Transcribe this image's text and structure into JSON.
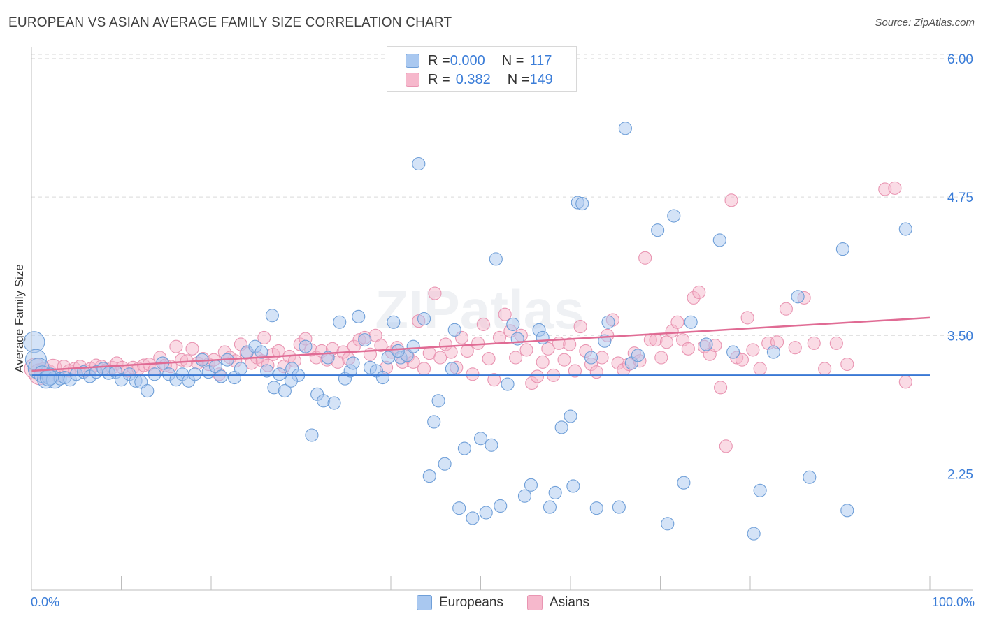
{
  "header": {
    "title": "EUROPEAN VS ASIAN AVERAGE FAMILY SIZE CORRELATION CHART",
    "source": "Source: ZipAtlas.com"
  },
  "colors": {
    "europeans_fill": "#a9c8f0",
    "europeans_stroke": "#6f9fd8",
    "europeans_line": "#3a78d4",
    "asians_fill": "#f6b8cc",
    "asians_stroke": "#e995b2",
    "asians_line": "#e06b94",
    "tick_label": "#3b7dd8",
    "grid": "#d9d9d9"
  },
  "legend_top": {
    "europeans": {
      "r_label": "R = ",
      "r_value": "0.000",
      "n_label": "N = ",
      "n_value": "117"
    },
    "asians": {
      "r_label": "R = ",
      "r_value": "0.382",
      "n_label": "N = ",
      "n_value": "149"
    }
  },
  "legend_bottom": {
    "europeans": "Europeans",
    "asians": "Asians"
  },
  "chart_data": {
    "type": "scatter",
    "title": "EUROPEAN VS ASIAN AVERAGE FAMILY SIZE CORRELATION CHART",
    "xlabel": "",
    "ylabel": "Average Family Size",
    "xlim": [
      0,
      100
    ],
    "ylim": [
      1.2,
      6.1
    ],
    "x_tick_labels": [
      "0.0%",
      "100.0%"
    ],
    "y_ticks": [
      2.25,
      3.5,
      4.75,
      6.0
    ],
    "y_tick_labels": [
      "2.25",
      "3.50",
      "4.75",
      "6.00"
    ],
    "grid": "horizontal dashed",
    "legend_position": "top-center",
    "watermark": "ZIPatlas",
    "series": [
      {
        "name": "Europeans",
        "R": 0.0,
        "N": 117,
        "trend": {
          "x": [
            0,
            100
          ],
          "y": [
            3.14,
            3.14
          ]
        },
        "points": [
          [
            0.3,
            3.44
          ],
          [
            0.5,
            3.28
          ],
          [
            0.8,
            3.2
          ],
          [
            1.2,
            3.15
          ],
          [
            1.6,
            3.1
          ],
          [
            2.1,
            3.13
          ],
          [
            2.6,
            3.1
          ],
          [
            3.2,
            3.11
          ],
          [
            3.7,
            3.12
          ],
          [
            4.3,
            3.1
          ],
          [
            5.0,
            3.15
          ],
          [
            5.8,
            3.17
          ],
          [
            6.5,
            3.13
          ],
          [
            7.2,
            3.17
          ],
          [
            8.0,
            3.2
          ],
          [
            8.6,
            3.16
          ],
          [
            9.4,
            3.17
          ],
          [
            10.0,
            3.1
          ],
          [
            10.9,
            3.15
          ],
          [
            11.6,
            3.09
          ],
          [
            12.2,
            3.08
          ],
          [
            12.9,
            3.0
          ],
          [
            13.7,
            3.15
          ],
          [
            14.6,
            3.25
          ],
          [
            15.3,
            3.15
          ],
          [
            16.1,
            3.1
          ],
          [
            16.8,
            3.15
          ],
          [
            17.5,
            3.09
          ],
          [
            18.2,
            3.15
          ],
          [
            19.0,
            3.28
          ],
          [
            19.7,
            3.17
          ],
          [
            20.5,
            3.22
          ],
          [
            21.1,
            3.13
          ],
          [
            21.8,
            3.28
          ],
          [
            22.6,
            3.12
          ],
          [
            23.3,
            3.2
          ],
          [
            24.0,
            3.35
          ],
          [
            24.9,
            3.4
          ],
          [
            25.6,
            3.35
          ],
          [
            26.2,
            3.18
          ],
          [
            26.8,
            3.68
          ],
          [
            27.0,
            3.03
          ],
          [
            27.6,
            3.15
          ],
          [
            28.2,
            3.0
          ],
          [
            29.0,
            3.2
          ],
          [
            29.7,
            3.14
          ],
          [
            30.5,
            3.4
          ],
          [
            31.2,
            2.6
          ],
          [
            31.8,
            2.97
          ],
          [
            32.5,
            2.91
          ],
          [
            33.0,
            3.3
          ],
          [
            33.7,
            2.89
          ],
          [
            34.3,
            3.62
          ],
          [
            34.9,
            3.11
          ],
          [
            35.5,
            3.18
          ],
          [
            36.4,
            3.67
          ],
          [
            37.1,
            3.46
          ],
          [
            37.7,
            3.21
          ],
          [
            38.4,
            3.18
          ],
          [
            39.1,
            3.12
          ],
          [
            39.7,
            3.3
          ],
          [
            40.3,
            3.62
          ],
          [
            41.1,
            3.3
          ],
          [
            41.8,
            3.32
          ],
          [
            42.5,
            3.4
          ],
          [
            43.1,
            5.05
          ],
          [
            43.7,
            3.65
          ],
          [
            44.3,
            2.23
          ],
          [
            44.8,
            2.72
          ],
          [
            45.3,
            2.91
          ],
          [
            46.0,
            2.34
          ],
          [
            46.8,
            3.2
          ],
          [
            47.1,
            3.55
          ],
          [
            47.6,
            1.94
          ],
          [
            48.2,
            2.48
          ],
          [
            49.1,
            1.85
          ],
          [
            50.0,
            2.57
          ],
          [
            50.6,
            1.9
          ],
          [
            51.2,
            2.51
          ],
          [
            51.7,
            4.19
          ],
          [
            52.2,
            1.96
          ],
          [
            53.0,
            3.06
          ],
          [
            53.6,
            3.6
          ],
          [
            54.1,
            3.47
          ],
          [
            54.9,
            2.05
          ],
          [
            55.6,
            2.15
          ],
          [
            56.5,
            3.55
          ],
          [
            56.9,
            3.48
          ],
          [
            57.7,
            1.95
          ],
          [
            58.3,
            2.08
          ],
          [
            59.0,
            2.67
          ],
          [
            60.0,
            2.77
          ],
          [
            60.3,
            2.14
          ],
          [
            60.8,
            4.7
          ],
          [
            61.3,
            4.69
          ],
          [
            62.3,
            3.3
          ],
          [
            62.9,
            1.94
          ],
          [
            63.8,
            3.45
          ],
          [
            64.2,
            3.62
          ],
          [
            65.4,
            1.95
          ],
          [
            66.1,
            5.37
          ],
          [
            66.8,
            3.25
          ],
          [
            67.5,
            3.32
          ],
          [
            69.7,
            4.45
          ],
          [
            70.8,
            1.8
          ],
          [
            71.5,
            4.58
          ],
          [
            72.6,
            2.17
          ],
          [
            73.4,
            3.62
          ],
          [
            75.1,
            3.42
          ],
          [
            76.6,
            4.36
          ],
          [
            78.1,
            3.35
          ],
          [
            80.4,
            1.71
          ],
          [
            81.1,
            2.1
          ],
          [
            82.6,
            3.35
          ],
          [
            85.3,
            3.85
          ],
          [
            86.6,
            2.22
          ],
          [
            90.3,
            4.28
          ],
          [
            90.8,
            1.92
          ],
          [
            97.3,
            4.46
          ],
          [
            1.9,
            3.12
          ],
          [
            35.8,
            3.25
          ],
          [
            28.9,
            3.09
          ],
          [
            40.8,
            3.36
          ]
        ]
      },
      {
        "name": "Asians",
        "R": 0.382,
        "N": 149,
        "trend": {
          "x": [
            0,
            100
          ],
          "y": [
            3.18,
            3.66
          ]
        },
        "points": [
          [
            0.4,
            3.2
          ],
          [
            0.9,
            3.15
          ],
          [
            1.4,
            3.18
          ],
          [
            1.9,
            3.16
          ],
          [
            2.4,
            3.21
          ],
          [
            3.0,
            3.14
          ],
          [
            3.6,
            3.22
          ],
          [
            4.2,
            3.18
          ],
          [
            4.8,
            3.2
          ],
          [
            5.4,
            3.22
          ],
          [
            6.0,
            3.18
          ],
          [
            6.6,
            3.2
          ],
          [
            7.2,
            3.23
          ],
          [
            7.8,
            3.22
          ],
          [
            8.4,
            3.19
          ],
          [
            9.0,
            3.21
          ],
          [
            9.5,
            3.25
          ],
          [
            10.1,
            3.21
          ],
          [
            10.7,
            3.18
          ],
          [
            11.3,
            3.21
          ],
          [
            11.9,
            3.2
          ],
          [
            12.5,
            3.23
          ],
          [
            13.1,
            3.24
          ],
          [
            13.7,
            3.19
          ],
          [
            14.3,
            3.3
          ],
          [
            14.9,
            3.23
          ],
          [
            15.5,
            3.22
          ],
          [
            16.1,
            3.4
          ],
          [
            16.7,
            3.28
          ],
          [
            17.3,
            3.27
          ],
          [
            17.9,
            3.38
          ],
          [
            18.5,
            3.25
          ],
          [
            19.1,
            3.29
          ],
          [
            19.7,
            3.24
          ],
          [
            20.3,
            3.28
          ],
          [
            20.9,
            3.15
          ],
          [
            21.5,
            3.35
          ],
          [
            22.1,
            3.3
          ],
          [
            22.7,
            3.27
          ],
          [
            23.3,
            3.42
          ],
          [
            23.9,
            3.34
          ],
          [
            24.5,
            3.25
          ],
          [
            25.1,
            3.3
          ],
          [
            25.7,
            3.27
          ],
          [
            26.3,
            3.23
          ],
          [
            26.9,
            3.33
          ],
          [
            27.5,
            3.36
          ],
          [
            28.1,
            3.22
          ],
          [
            28.7,
            3.31
          ],
          [
            29.3,
            3.27
          ],
          [
            29.9,
            3.42
          ],
          [
            30.5,
            3.47
          ],
          [
            31.1,
            3.37
          ],
          [
            31.7,
            3.3
          ],
          [
            32.3,
            3.36
          ],
          [
            32.9,
            3.28
          ],
          [
            33.5,
            3.38
          ],
          [
            34.1,
            3.26
          ],
          [
            34.7,
            3.35
          ],
          [
            35.3,
            3.29
          ],
          [
            35.9,
            3.4
          ],
          [
            36.5,
            3.46
          ],
          [
            37.1,
            3.48
          ],
          [
            37.7,
            3.33
          ],
          [
            38.3,
            3.5
          ],
          [
            38.9,
            3.41
          ],
          [
            39.5,
            3.21
          ],
          [
            40.1,
            3.35
          ],
          [
            40.7,
            3.39
          ],
          [
            41.3,
            3.26
          ],
          [
            41.9,
            3.31
          ],
          [
            42.5,
            3.26
          ],
          [
            43.1,
            3.63
          ],
          [
            43.7,
            3.2
          ],
          [
            44.3,
            3.34
          ],
          [
            44.9,
            3.88
          ],
          [
            45.5,
            3.3
          ],
          [
            46.1,
            3.42
          ],
          [
            46.7,
            3.35
          ],
          [
            47.3,
            3.21
          ],
          [
            47.9,
            3.48
          ],
          [
            48.5,
            3.36
          ],
          [
            49.1,
            3.15
          ],
          [
            49.7,
            3.43
          ],
          [
            50.3,
            3.6
          ],
          [
            50.9,
            3.29
          ],
          [
            51.5,
            3.1
          ],
          [
            52.1,
            3.48
          ],
          [
            52.7,
            3.69
          ],
          [
            53.3,
            3.54
          ],
          [
            53.9,
            3.3
          ],
          [
            54.5,
            3.5
          ],
          [
            55.1,
            3.37
          ],
          [
            55.7,
            3.07
          ],
          [
            56.3,
            3.13
          ],
          [
            56.9,
            3.26
          ],
          [
            57.5,
            3.38
          ],
          [
            58.1,
            3.14
          ],
          [
            58.7,
            3.43
          ],
          [
            59.3,
            3.28
          ],
          [
            59.9,
            3.42
          ],
          [
            60.5,
            3.18
          ],
          [
            61.1,
            3.58
          ],
          [
            61.7,
            3.36
          ],
          [
            62.3,
            3.24
          ],
          [
            62.9,
            3.17
          ],
          [
            63.5,
            3.3
          ],
          [
            64.1,
            3.5
          ],
          [
            64.7,
            3.64
          ],
          [
            65.3,
            3.25
          ],
          [
            65.9,
            3.19
          ],
          [
            66.5,
            3.24
          ],
          [
            67.1,
            3.34
          ],
          [
            67.7,
            3.27
          ],
          [
            68.3,
            4.2
          ],
          [
            68.9,
            3.46
          ],
          [
            69.5,
            3.46
          ],
          [
            70.1,
            3.3
          ],
          [
            70.7,
            3.44
          ],
          [
            71.3,
            3.54
          ],
          [
            71.9,
            3.62
          ],
          [
            72.5,
            3.46
          ],
          [
            73.1,
            3.38
          ],
          [
            73.7,
            3.84
          ],
          [
            74.3,
            3.89
          ],
          [
            74.9,
            3.4
          ],
          [
            75.5,
            3.33
          ],
          [
            76.1,
            3.41
          ],
          [
            76.7,
            3.03
          ],
          [
            77.3,
            2.5
          ],
          [
            77.9,
            4.72
          ],
          [
            78.5,
            3.3
          ],
          [
            79.1,
            3.28
          ],
          [
            79.7,
            3.66
          ],
          [
            80.3,
            3.37
          ],
          [
            81.1,
            3.2
          ],
          [
            82.0,
            3.43
          ],
          [
            83.0,
            3.44
          ],
          [
            84.0,
            3.74
          ],
          [
            85.0,
            3.39
          ],
          [
            86.0,
            3.84
          ],
          [
            87.1,
            3.43
          ],
          [
            88.3,
            3.2
          ],
          [
            89.6,
            3.43
          ],
          [
            90.8,
            3.24
          ],
          [
            95.0,
            4.82
          ],
          [
            96.1,
            4.83
          ],
          [
            97.3,
            3.08
          ],
          [
            25.9,
            3.48
          ]
        ]
      }
    ]
  }
}
